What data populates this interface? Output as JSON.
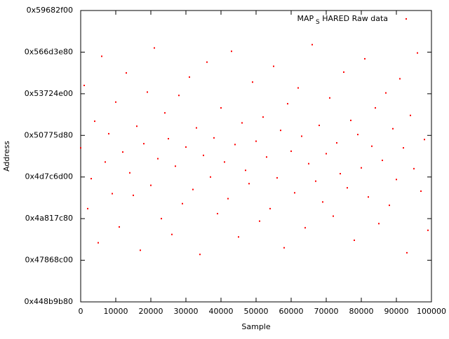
{
  "chart_data": {
    "type": "scatter",
    "xlabel": "Sample",
    "ylabel": "Address",
    "xlim": [
      0,
      100000
    ],
    "xticks": [
      0,
      10000,
      20000,
      30000,
      40000,
      50000,
      60000,
      70000,
      80000,
      90000,
      100000
    ],
    "ylim": [
      1150000000,
      1500000000
    ],
    "yticks": [
      {
        "value": 1150000000,
        "label": "0x448b9b80"
      },
      {
        "value": 1200000000,
        "label": "0x47868c00"
      },
      {
        "value": 1250000000,
        "label": "0x4a817c80"
      },
      {
        "value": 1300000000,
        "label": "0x4d7c6d00"
      },
      {
        "value": 1350000000,
        "label": "0x50775d80"
      },
      {
        "value": 1400000000,
        "label": "0x53724e00"
      },
      {
        "value": 1450000000,
        "label": "0x566d3e80"
      },
      {
        "value": 1500000000,
        "label": "0x59682f00"
      }
    ],
    "legend": "top-right",
    "series": [
      {
        "name": "MAP_SHARED Raw data",
        "color": "#ff0000",
        "x": [
          0,
          1000,
          2000,
          3000,
          4000,
          5000,
          6000,
          7000,
          8000,
          9000,
          10000,
          11000,
          12000,
          13000,
          14000,
          15000,
          16000,
          17000,
          18000,
          19000,
          20000,
          21000,
          22000,
          23000,
          24000,
          25000,
          26000,
          27000,
          28000,
          29000,
          30000,
          31000,
          32000,
          33000,
          34000,
          35000,
          36000,
          37000,
          38000,
          39000,
          40000,
          41000,
          42000,
          43000,
          44000,
          45000,
          46000,
          47000,
          48000,
          49000,
          50000,
          51000,
          52000,
          53000,
          54000,
          55000,
          56000,
          57000,
          58000,
          59000,
          60000,
          61000,
          62000,
          63000,
          64000,
          65000,
          66000,
          67000,
          68000,
          69000,
          70000,
          71000,
          72000,
          73000,
          74000,
          75000,
          76000,
          77000,
          78000,
          79000,
          80000,
          81000,
          82000,
          83000,
          84000,
          85000,
          86000,
          87000,
          88000,
          89000,
          90000,
          91000,
          92000,
          93000,
          94000,
          95000,
          96000,
          97000,
          98000,
          99000
        ],
        "values": [
          1335000000,
          1410000000,
          1262000000,
          1298000000,
          1367000000,
          1221000000,
          1445000000,
          1318000000,
          1352000000,
          1280000000,
          1390000000,
          1240000000,
          1330000000,
          1425000000,
          1305000000,
          1278000000,
          1361000000,
          1212000000,
          1340000000,
          1402000000,
          1290000000,
          1455000000,
          1322000000,
          1250000000,
          1377000000,
          1346000000,
          1231000000,
          1313000000,
          1398000000,
          1268000000,
          1336000000,
          1420000000,
          1285000000,
          1359000000,
          1207000000,
          1326000000,
          1438000000,
          1300000000,
          1347000000,
          1256000000,
          1383000000,
          1318000000,
          1274000000,
          1451000000,
          1339000000,
          1228000000,
          1365000000,
          1308000000,
          1292000000,
          1414000000,
          1343000000,
          1247000000,
          1372000000,
          1324000000,
          1262000000,
          1433000000,
          1299000000,
          1356000000,
          1215000000,
          1388000000,
          1331000000,
          1281000000,
          1407000000,
          1349000000,
          1239000000,
          1316000000,
          1459000000,
          1295000000,
          1362000000,
          1270000000,
          1328000000,
          1395000000,
          1253000000,
          1341000000,
          1304000000,
          1426000000,
          1287000000,
          1368000000,
          1224000000,
          1351000000,
          1311000000,
          1442000000,
          1276000000,
          1337000000,
          1383000000,
          1244000000,
          1320000000,
          1401000000,
          1266000000,
          1358000000,
          1297000000,
          1418000000,
          1335000000,
          1209000000,
          1374000000,
          1310000000,
          1449000000,
          1283000000,
          1345000000,
          1236000000
        ]
      }
    ]
  }
}
